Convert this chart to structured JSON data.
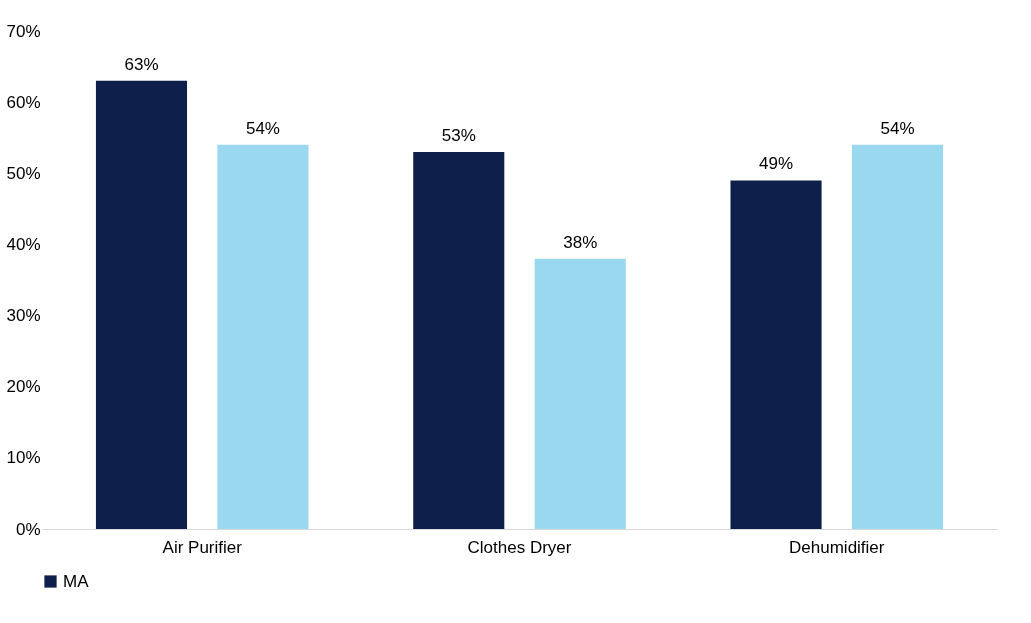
{
  "chart_data": {
    "type": "bar",
    "categories": [
      "Air Purifier",
      "Clothes Dryer",
      "Dehumidifier"
    ],
    "series": [
      {
        "name": "MA",
        "color": "#0f1f4b",
        "values": [
          63,
          53,
          49
        ],
        "value_labels": [
          "63%",
          "53%",
          "49%"
        ]
      },
      {
        "color": "#99d8ee",
        "values": [
          54,
          38,
          54
        ],
        "value_labels": [
          "54%",
          "38%",
          "54%"
        ]
      }
    ],
    "ylim": [
      0,
      70
    ],
    "yticks": [
      {
        "value": 0,
        "label": "0%"
      },
      {
        "value": 10,
        "label": "10%"
      },
      {
        "value": 20,
        "label": "20%"
      },
      {
        "value": 30,
        "label": "30%"
      },
      {
        "value": 40,
        "label": "40%"
      },
      {
        "value": 50,
        "label": "50%"
      },
      {
        "value": 60,
        "label": "60%"
      },
      {
        "value": 70,
        "label": "70%"
      }
    ],
    "grid": false,
    "legend": "bottom"
  }
}
